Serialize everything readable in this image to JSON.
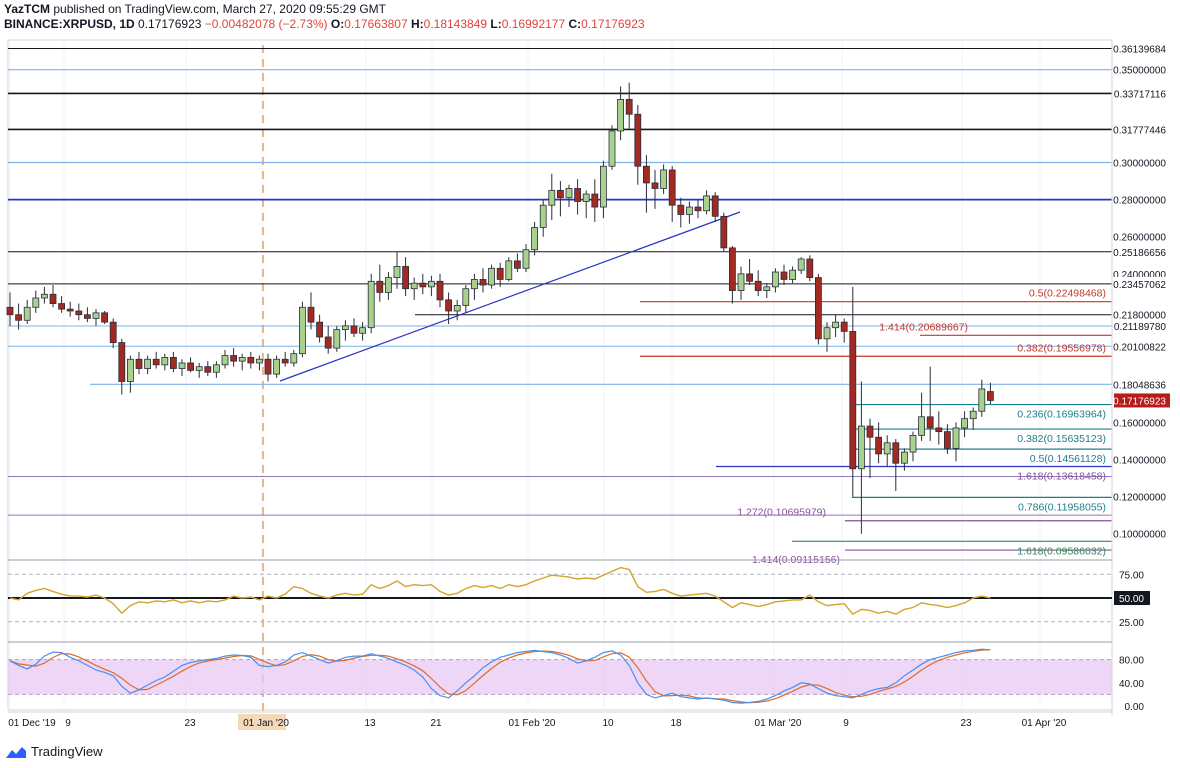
{
  "header": {
    "publisher": "YazTCM",
    "published_line": "published on TradingView.com, March 27, 2020 09:55:29 GMT",
    "symbol": "BINANCE:XRPUSD, 1D",
    "last": "0.17176923",
    "change": "−0.00482078 (−2.73%)",
    "o_label": "O:",
    "o": "0.17663807",
    "h_label": "H:",
    "h": "0.18143849",
    "l_label": "L:",
    "l": "0.16992177",
    "c_label": "C:",
    "c": "0.17176923"
  },
  "footer": {
    "brand": "TradingView"
  },
  "colors": {
    "up": "#a9d18e",
    "down": "#a32a22",
    "wick": "#2a2e39",
    "trendline": "#2833c8",
    "rsi": "#d4a52b",
    "stoch_k": "#4a8ff0",
    "stoch_d": "#e06b2a",
    "stoch_band": "#e8c8f4",
    "price_tag_bg": "#b71c1c"
  },
  "chart_data": {
    "type": "candlestick",
    "x_ticks": [
      "01 Dec '19",
      "9",
      "23",
      "01 Jan '20",
      "13",
      "21",
      "01 Feb '20",
      "10",
      "18",
      "01 Mar '20",
      "9",
      "23",
      "01 Apr '20"
    ],
    "price_axis_labels": [
      "0.26000000",
      "0.24000000",
      "0.16000000",
      "0.14000000",
      "0.12000000",
      "0.10000000"
    ],
    "ylim": [
      0.088,
      0.366
    ],
    "last_price_label": "0.17176923",
    "levels": [
      {
        "label": "0.36139684",
        "price": 0.3614
      },
      {
        "label": "0.35000000",
        "price": 0.35
      },
      {
        "label": "0.33717116",
        "price": 0.3372
      },
      {
        "label": "0.31777446",
        "price": 0.3178
      },
      {
        "label": "0.30000000",
        "price": 0.3
      },
      {
        "label": "0.28000000",
        "price": 0.28
      },
      {
        "label": "0.25186656",
        "price": 0.2519
      },
      {
        "label": "0.23457062",
        "price": 0.2346
      },
      {
        "label": "0.21800000",
        "price": 0.218
      },
      {
        "label": "0.21189780",
        "price": 0.2119
      },
      {
        "label": "0.20100822",
        "price": 0.201
      },
      {
        "label": "0.18048636",
        "price": 0.1805
      }
    ],
    "fib_labels": [
      {
        "text": "0.5(0.22498468)",
        "price": 0.225,
        "color": "#c0392b"
      },
      {
        "text": "1.414(0.20689667)",
        "price": 0.2069,
        "color": "#c0392b"
      },
      {
        "text": "0.382(0.19556978)",
        "price": 0.1956,
        "color": "#c0392b"
      },
      {
        "text": "0.236(0.16963964)",
        "price": 0.1696,
        "color": "#1e7f8c"
      },
      {
        "text": "0.382(0.15635123)",
        "price": 0.1564,
        "color": "#1e7f8c"
      },
      {
        "text": "0.5(0.14561128)",
        "price": 0.1456,
        "color": "#1e7f8c"
      },
      {
        "text": "1.618(0.13618458)",
        "price": 0.1362,
        "color": "#8a4f9e"
      },
      {
        "text": "0.786(0.11958055)",
        "price": 0.1196,
        "color": "#1e7f8c"
      },
      {
        "text": "1.272(0.10695979)",
        "price": 0.107,
        "color": "#8a4f9e"
      },
      {
        "text": "1.618(0.09586032)",
        "price": 0.0959,
        "color": "#2e8b57"
      },
      {
        "text": "1.414(0.09115156)",
        "price": 0.0912,
        "color": "#8a4f9e"
      }
    ],
    "candles": [
      {
        "o": 0.222,
        "h": 0.23,
        "l": 0.212,
        "c": 0.218
      },
      {
        "o": 0.218,
        "h": 0.224,
        "l": 0.21,
        "c": 0.215
      },
      {
        "o": 0.215,
        "h": 0.226,
        "l": 0.213,
        "c": 0.222
      },
      {
        "o": 0.222,
        "h": 0.231,
        "l": 0.219,
        "c": 0.227
      },
      {
        "o": 0.227,
        "h": 0.233,
        "l": 0.224,
        "c": 0.229
      },
      {
        "o": 0.229,
        "h": 0.234,
        "l": 0.222,
        "c": 0.224
      },
      {
        "o": 0.224,
        "h": 0.228,
        "l": 0.219,
        "c": 0.221
      },
      {
        "o": 0.221,
        "h": 0.225,
        "l": 0.217,
        "c": 0.22
      },
      {
        "o": 0.22,
        "h": 0.224,
        "l": 0.215,
        "c": 0.218
      },
      {
        "o": 0.218,
        "h": 0.222,
        "l": 0.214,
        "c": 0.216
      },
      {
        "o": 0.216,
        "h": 0.221,
        "l": 0.212,
        "c": 0.219
      },
      {
        "o": 0.219,
        "h": 0.22,
        "l": 0.213,
        "c": 0.214
      },
      {
        "o": 0.214,
        "h": 0.216,
        "l": 0.2,
        "c": 0.203
      },
      {
        "o": 0.203,
        "h": 0.205,
        "l": 0.175,
        "c": 0.182
      },
      {
        "o": 0.182,
        "h": 0.196,
        "l": 0.176,
        "c": 0.194
      },
      {
        "o": 0.194,
        "h": 0.198,
        "l": 0.186,
        "c": 0.189
      },
      {
        "o": 0.189,
        "h": 0.196,
        "l": 0.186,
        "c": 0.194
      },
      {
        "o": 0.194,
        "h": 0.198,
        "l": 0.189,
        "c": 0.191
      },
      {
        "o": 0.191,
        "h": 0.197,
        "l": 0.188,
        "c": 0.195
      },
      {
        "o": 0.195,
        "h": 0.198,
        "l": 0.187,
        "c": 0.189
      },
      {
        "o": 0.189,
        "h": 0.194,
        "l": 0.185,
        "c": 0.192
      },
      {
        "o": 0.192,
        "h": 0.195,
        "l": 0.187,
        "c": 0.188
      },
      {
        "o": 0.188,
        "h": 0.192,
        "l": 0.184,
        "c": 0.19
      },
      {
        "o": 0.19,
        "h": 0.193,
        "l": 0.185,
        "c": 0.187
      },
      {
        "o": 0.187,
        "h": 0.193,
        "l": 0.184,
        "c": 0.191
      },
      {
        "o": 0.191,
        "h": 0.199,
        "l": 0.189,
        "c": 0.196
      },
      {
        "o": 0.196,
        "h": 0.2,
        "l": 0.19,
        "c": 0.193
      },
      {
        "o": 0.193,
        "h": 0.197,
        "l": 0.188,
        "c": 0.195
      },
      {
        "o": 0.195,
        "h": 0.198,
        "l": 0.189,
        "c": 0.192
      },
      {
        "o": 0.192,
        "h": 0.196,
        "l": 0.188,
        "c": 0.194
      },
      {
        "o": 0.194,
        "h": 0.197,
        "l": 0.182,
        "c": 0.186
      },
      {
        "o": 0.186,
        "h": 0.196,
        "l": 0.184,
        "c": 0.194
      },
      {
        "o": 0.194,
        "h": 0.198,
        "l": 0.19,
        "c": 0.192
      },
      {
        "o": 0.192,
        "h": 0.199,
        "l": 0.19,
        "c": 0.197
      },
      {
        "o": 0.197,
        "h": 0.225,
        "l": 0.195,
        "c": 0.222
      },
      {
        "o": 0.222,
        "h": 0.23,
        "l": 0.21,
        "c": 0.214
      },
      {
        "o": 0.214,
        "h": 0.218,
        "l": 0.203,
        "c": 0.206
      },
      {
        "o": 0.206,
        "h": 0.212,
        "l": 0.197,
        "c": 0.2
      },
      {
        "o": 0.2,
        "h": 0.212,
        "l": 0.198,
        "c": 0.21
      },
      {
        "o": 0.21,
        "h": 0.215,
        "l": 0.204,
        "c": 0.212
      },
      {
        "o": 0.212,
        "h": 0.216,
        "l": 0.206,
        "c": 0.208
      },
      {
        "o": 0.208,
        "h": 0.214,
        "l": 0.204,
        "c": 0.211
      },
      {
        "o": 0.211,
        "h": 0.24,
        "l": 0.208,
        "c": 0.236
      },
      {
        "o": 0.236,
        "h": 0.245,
        "l": 0.225,
        "c": 0.23
      },
      {
        "o": 0.23,
        "h": 0.241,
        "l": 0.226,
        "c": 0.238
      },
      {
        "o": 0.238,
        "h": 0.252,
        "l": 0.232,
        "c": 0.244
      },
      {
        "o": 0.244,
        "h": 0.249,
        "l": 0.228,
        "c": 0.232
      },
      {
        "o": 0.232,
        "h": 0.238,
        "l": 0.226,
        "c": 0.235
      },
      {
        "o": 0.235,
        "h": 0.24,
        "l": 0.229,
        "c": 0.233
      },
      {
        "o": 0.233,
        "h": 0.239,
        "l": 0.228,
        "c": 0.236
      },
      {
        "o": 0.236,
        "h": 0.24,
        "l": 0.222,
        "c": 0.226
      },
      {
        "o": 0.226,
        "h": 0.23,
        "l": 0.213,
        "c": 0.22
      },
      {
        "o": 0.22,
        "h": 0.226,
        "l": 0.215,
        "c": 0.223
      },
      {
        "o": 0.223,
        "h": 0.234,
        "l": 0.219,
        "c": 0.232
      },
      {
        "o": 0.232,
        "h": 0.24,
        "l": 0.226,
        "c": 0.237
      },
      {
        "o": 0.237,
        "h": 0.243,
        "l": 0.23,
        "c": 0.234
      },
      {
        "o": 0.234,
        "h": 0.245,
        "l": 0.232,
        "c": 0.243
      },
      {
        "o": 0.243,
        "h": 0.246,
        "l": 0.233,
        "c": 0.237
      },
      {
        "o": 0.237,
        "h": 0.249,
        "l": 0.236,
        "c": 0.247
      },
      {
        "o": 0.247,
        "h": 0.251,
        "l": 0.241,
        "c": 0.243
      },
      {
        "o": 0.243,
        "h": 0.256,
        "l": 0.241,
        "c": 0.253
      },
      {
        "o": 0.253,
        "h": 0.268,
        "l": 0.25,
        "c": 0.265
      },
      {
        "o": 0.265,
        "h": 0.28,
        "l": 0.26,
        "c": 0.277
      },
      {
        "o": 0.277,
        "h": 0.294,
        "l": 0.269,
        "c": 0.285
      },
      {
        "o": 0.285,
        "h": 0.29,
        "l": 0.271,
        "c": 0.281
      },
      {
        "o": 0.281,
        "h": 0.288,
        "l": 0.276,
        "c": 0.286
      },
      {
        "o": 0.286,
        "h": 0.291,
        "l": 0.272,
        "c": 0.279
      },
      {
        "o": 0.279,
        "h": 0.285,
        "l": 0.27,
        "c": 0.283
      },
      {
        "o": 0.283,
        "h": 0.291,
        "l": 0.268,
        "c": 0.276
      },
      {
        "o": 0.276,
        "h": 0.301,
        "l": 0.27,
        "c": 0.298
      },
      {
        "o": 0.298,
        "h": 0.32,
        "l": 0.296,
        "c": 0.317
      },
      {
        "o": 0.317,
        "h": 0.341,
        "l": 0.312,
        "c": 0.334
      },
      {
        "o": 0.334,
        "h": 0.343,
        "l": 0.318,
        "c": 0.326
      },
      {
        "o": 0.326,
        "h": 0.331,
        "l": 0.288,
        "c": 0.298
      },
      {
        "o": 0.298,
        "h": 0.304,
        "l": 0.273,
        "c": 0.289
      },
      {
        "o": 0.289,
        "h": 0.296,
        "l": 0.275,
        "c": 0.286
      },
      {
        "o": 0.286,
        "h": 0.299,
        "l": 0.283,
        "c": 0.296
      },
      {
        "o": 0.296,
        "h": 0.298,
        "l": 0.268,
        "c": 0.277
      },
      {
        "o": 0.277,
        "h": 0.281,
        "l": 0.265,
        "c": 0.272
      },
      {
        "o": 0.272,
        "h": 0.279,
        "l": 0.267,
        "c": 0.276
      },
      {
        "o": 0.276,
        "h": 0.28,
        "l": 0.27,
        "c": 0.274
      },
      {
        "o": 0.274,
        "h": 0.285,
        "l": 0.272,
        "c": 0.282
      },
      {
        "o": 0.282,
        "h": 0.284,
        "l": 0.268,
        "c": 0.271
      },
      {
        "o": 0.271,
        "h": 0.273,
        "l": 0.252,
        "c": 0.254
      },
      {
        "o": 0.254,
        "h": 0.255,
        "l": 0.224,
        "c": 0.231
      },
      {
        "o": 0.231,
        "h": 0.244,
        "l": 0.226,
        "c": 0.24
      },
      {
        "o": 0.24,
        "h": 0.248,
        "l": 0.234,
        "c": 0.236
      },
      {
        "o": 0.236,
        "h": 0.242,
        "l": 0.228,
        "c": 0.231
      },
      {
        "o": 0.231,
        "h": 0.235,
        "l": 0.227,
        "c": 0.233
      },
      {
        "o": 0.233,
        "h": 0.243,
        "l": 0.23,
        "c": 0.241
      },
      {
        "o": 0.241,
        "h": 0.245,
        "l": 0.234,
        "c": 0.237
      },
      {
        "o": 0.237,
        "h": 0.244,
        "l": 0.235,
        "c": 0.242
      },
      {
        "o": 0.242,
        "h": 0.249,
        "l": 0.24,
        "c": 0.248
      },
      {
        "o": 0.248,
        "h": 0.25,
        "l": 0.236,
        "c": 0.238
      },
      {
        "o": 0.238,
        "h": 0.24,
        "l": 0.202,
        "c": 0.205
      },
      {
        "o": 0.205,
        "h": 0.214,
        "l": 0.198,
        "c": 0.211
      },
      {
        "o": 0.211,
        "h": 0.218,
        "l": 0.206,
        "c": 0.214
      },
      {
        "o": 0.214,
        "h": 0.216,
        "l": 0.203,
        "c": 0.209
      },
      {
        "o": 0.209,
        "h": 0.233,
        "l": 0.12,
        "c": 0.135
      },
      {
        "o": 0.135,
        "h": 0.182,
        "l": 0.1,
        "c": 0.158
      },
      {
        "o": 0.158,
        "h": 0.162,
        "l": 0.13,
        "c": 0.152
      },
      {
        "o": 0.152,
        "h": 0.16,
        "l": 0.138,
        "c": 0.143
      },
      {
        "o": 0.143,
        "h": 0.153,
        "l": 0.136,
        "c": 0.149
      },
      {
        "o": 0.149,
        "h": 0.151,
        "l": 0.123,
        "c": 0.138
      },
      {
        "o": 0.138,
        "h": 0.146,
        "l": 0.134,
        "c": 0.144
      },
      {
        "o": 0.144,
        "h": 0.155,
        "l": 0.139,
        "c": 0.153
      },
      {
        "o": 0.153,
        "h": 0.176,
        "l": 0.15,
        "c": 0.163
      },
      {
        "o": 0.163,
        "h": 0.19,
        "l": 0.15,
        "c": 0.157
      },
      {
        "o": 0.157,
        "h": 0.166,
        "l": 0.148,
        "c": 0.155
      },
      {
        "o": 0.155,
        "h": 0.159,
        "l": 0.143,
        "c": 0.146
      },
      {
        "o": 0.146,
        "h": 0.16,
        "l": 0.139,
        "c": 0.157
      },
      {
        "o": 0.157,
        "h": 0.166,
        "l": 0.152,
        "c": 0.162
      },
      {
        "o": 0.162,
        "h": 0.168,
        "l": 0.156,
        "c": 0.166
      },
      {
        "o": 0.166,
        "h": 0.183,
        "l": 0.163,
        "c": 0.178
      },
      {
        "o": 0.1766,
        "h": 0.1814,
        "l": 0.1699,
        "c": 0.1718
      }
    ],
    "rsi": {
      "labels": [
        "75.00",
        "50.00",
        "25.00"
      ],
      "values": [
        50,
        48,
        55,
        58,
        60,
        57,
        54,
        52,
        52,
        51,
        53,
        50,
        44,
        34,
        42,
        46,
        45,
        47,
        46,
        48,
        45,
        47,
        45,
        47,
        46,
        48,
        52,
        50,
        51,
        48,
        52,
        50,
        54,
        62,
        60,
        55,
        52,
        50,
        53,
        55,
        53,
        54,
        64,
        60,
        63,
        68,
        62,
        64,
        63,
        64,
        57,
        53,
        55,
        60,
        63,
        61,
        63,
        60,
        64,
        62,
        64,
        68,
        71,
        74,
        73,
        72,
        70,
        71,
        70,
        74,
        78,
        82,
        80,
        62,
        56,
        57,
        59,
        55,
        52,
        53,
        54,
        55,
        52,
        46,
        40,
        45,
        43,
        41,
        43,
        46,
        47,
        48,
        48,
        53,
        46,
        42,
        43,
        44,
        33,
        38,
        37,
        34,
        36,
        33,
        38,
        40,
        45,
        43,
        42,
        40,
        42,
        45,
        50,
        52,
        50
      ]
    },
    "stoch": {
      "labels": [
        "80.00",
        "40.00",
        "0.00"
      ],
      "k": [
        78,
        70,
        64,
        72,
        86,
        93,
        92,
        84,
        78,
        70,
        62,
        58,
        52,
        34,
        22,
        28,
        36,
        44,
        50,
        60,
        70,
        75,
        78,
        80,
        82,
        86,
        88,
        87,
        84,
        70,
        68,
        70,
        76,
        88,
        92,
        86,
        80,
        74,
        78,
        84,
        86,
        86,
        90,
        86,
        82,
        76,
        70,
        62,
        50,
        30,
        18,
        14,
        26,
        40,
        52,
        66,
        76,
        84,
        88,
        92,
        94,
        96,
        94,
        92,
        88,
        82,
        74,
        78,
        84,
        92,
        95,
        88,
        70,
        40,
        20,
        14,
        18,
        22,
        16,
        14,
        12,
        14,
        12,
        10,
        6,
        5,
        6,
        8,
        12,
        18,
        26,
        32,
        40,
        38,
        30,
        22,
        18,
        16,
        14,
        20,
        26,
        30,
        32,
        40,
        52,
        62,
        72,
        80,
        84,
        88,
        92,
        95,
        96,
        98,
        97
      ]
    }
  }
}
